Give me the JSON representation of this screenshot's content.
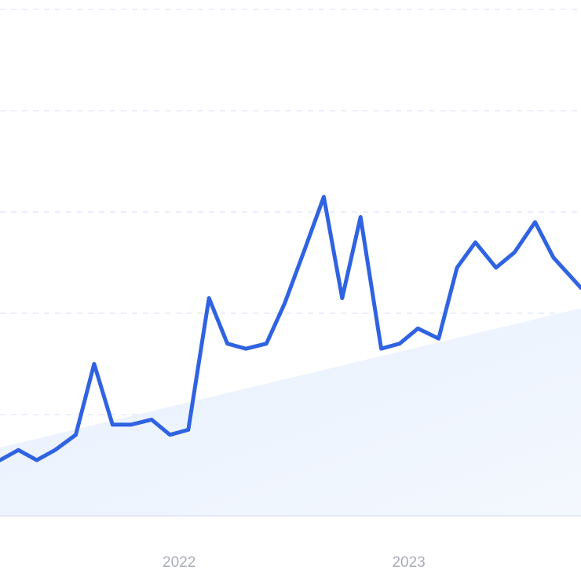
{
  "chart_data": {
    "type": "line",
    "title": "",
    "xlabel": "",
    "ylabel": "",
    "x_tick_labels": [
      "2022",
      "2023"
    ],
    "x_tick_positions": [
      2022.0,
      2023.0
    ],
    "xlim": [
      2021.22,
      2023.75
    ],
    "ylim": [
      0,
      100
    ],
    "grid": true,
    "series": [
      {
        "values": [
          11,
          13,
          11,
          13,
          16,
          30,
          18,
          18,
          19,
          16,
          17,
          43,
          34,
          33,
          34,
          42,
          53,
          63,
          43,
          59,
          33,
          34,
          37,
          35,
          49,
          54,
          49,
          52,
          58,
          51,
          45
        ],
        "x": [
          2021.22,
          2021.3,
          2021.38,
          2021.46,
          2021.55,
          2021.63,
          2021.71,
          2021.79,
          2021.88,
          2021.96,
          2022.04,
          2022.13,
          2022.21,
          2022.29,
          2022.38,
          2022.46,
          2022.55,
          2022.63,
          2022.71,
          2022.79,
          2022.88,
          2022.96,
          2023.04,
          2023.13,
          2023.21,
          2023.29,
          2023.38,
          2023.46,
          2023.55,
          2023.63,
          2023.75
        ]
      }
    ],
    "trend": {
      "start": 13.5,
      "end": 41
    },
    "colors": {
      "line": "#2f63e1",
      "area_top": "#e7f0fd",
      "area_bottom": "#f4f8fe",
      "grid": "#dfe3f8",
      "tick_text": "#a9adb8"
    }
  }
}
